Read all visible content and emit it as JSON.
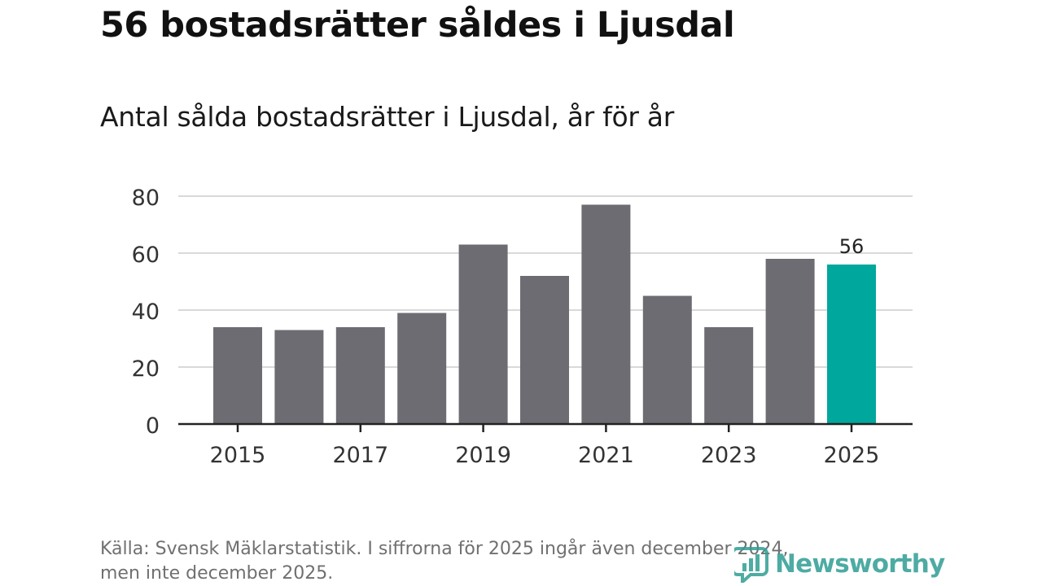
{
  "title": "56 bostadsrätter såldes i Ljusdal",
  "subtitle": "Antal sålda bostadsrätter i Ljusdal, år för år",
  "footer": {
    "line1": "Källa: Svensk Mäklarstatistik. I siffrorna för 2025 ingår även december 2024,",
    "line2": "men inte december 2025."
  },
  "logo": {
    "text": "Newsworthy"
  },
  "colors": {
    "bar": "#6d6c73",
    "highlight": "#00a79d",
    "grid": "#d9d9d9",
    "axis": "#222222"
  },
  "chart_data": {
    "type": "bar",
    "title": "Antal sålda bostadsrätter i Ljusdal, år för år",
    "xlabel": "",
    "ylabel": "",
    "categories": [
      "2015",
      "2016",
      "2017",
      "2018",
      "2019",
      "2020",
      "2021",
      "2022",
      "2023",
      "2024",
      "2025"
    ],
    "values": [
      34,
      33,
      34,
      39,
      63,
      52,
      77,
      45,
      34,
      58,
      56
    ],
    "highlight_index": 10,
    "highlight_label": "56",
    "x_tick_labels": [
      "2015",
      "2017",
      "2019",
      "2021",
      "2023",
      "2025"
    ],
    "y_ticks": [
      0,
      20,
      40,
      60,
      80
    ],
    "ylim": [
      0,
      80
    ],
    "grid": true
  }
}
